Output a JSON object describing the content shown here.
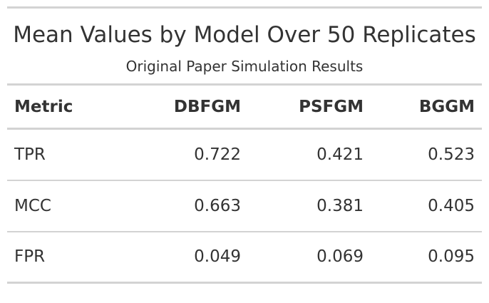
{
  "chart_data": {
    "type": "table",
    "title": "Mean Values by Model Over 50 Replicates",
    "subtitle": "Original Paper Simulation Results",
    "columns": [
      "Metric",
      "DBFGM",
      "PSFGM",
      "BGGM"
    ],
    "rows": [
      {
        "metric": "TPR",
        "values": [
          "0.722",
          "0.421",
          "0.523"
        ]
      },
      {
        "metric": "MCC",
        "values": [
          "0.663",
          "0.381",
          "0.405"
        ]
      },
      {
        "metric": "FPR",
        "values": [
          "0.049",
          "0.069",
          "0.095"
        ]
      }
    ]
  },
  "colors": {
    "text": "#333333",
    "rule": "#d3d3d3",
    "background": "#ffffff"
  }
}
